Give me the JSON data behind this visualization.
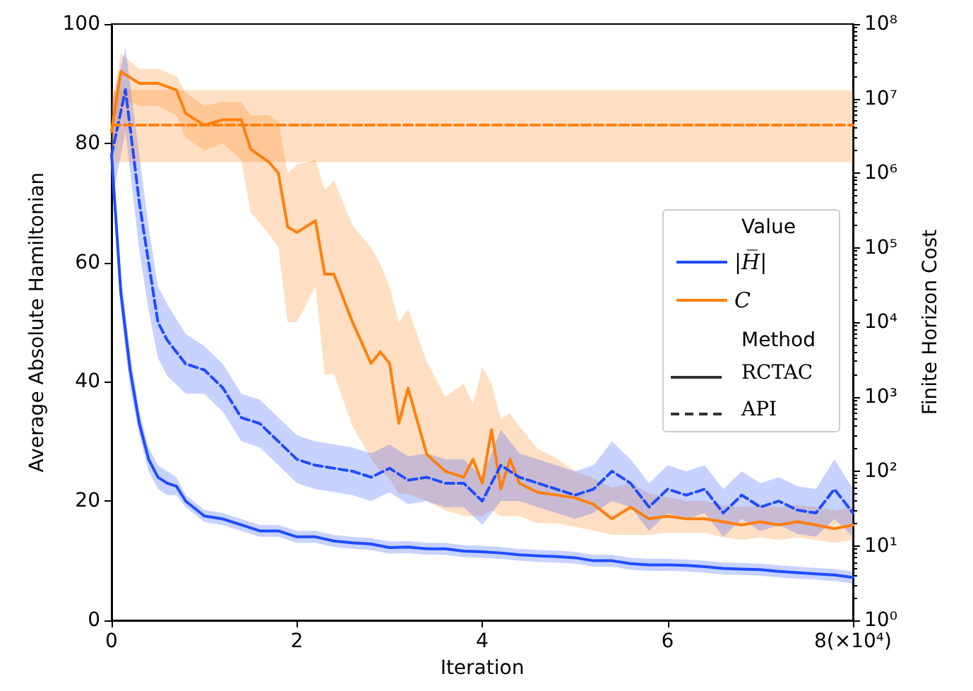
{
  "chart_data": {
    "type": "line",
    "xlabel": "Iteration",
    "ylabel": "Average Absolute Hamiltonian",
    "y2label": "Finite Horizon Cost",
    "legend_title": "Value",
    "legend": "right",
    "marker": "none",
    "grid": false,
    "annotations": [
      "Method",
      "RCTAC",
      "API"
    ],
    "xlim": [
      0,
      8
    ],
    "xticks": [
      0,
      2,
      4,
      6,
      {
        "value": 8,
        "label": "8(×10⁴)"
      }
    ],
    "ylim": [
      0,
      100
    ],
    "yticks": [
      0,
      20,
      40,
      60,
      80,
      100
    ],
    "log": "y2",
    "y2lim": [
      1,
      100000000
    ],
    "y2ticks": [
      {
        "value": 1,
        "label": "10⁰"
      },
      {
        "value": 10,
        "label": "10¹"
      },
      {
        "value": 100,
        "label": "10²"
      },
      {
        "value": 1000,
        "label": "10³"
      },
      {
        "value": 10000,
        "label": "10⁴"
      },
      {
        "value": 100000,
        "label": "10⁵"
      },
      {
        "value": 1000000,
        "label": "10⁶"
      },
      {
        "value": 10000000,
        "label": "10⁷"
      },
      {
        "value": 100000000,
        "label": "10⁸"
      }
    ],
    "series": [
      {
        "name": "|H̅|",
        "color": "#1f4cff",
        "line_style": "solid",
        "x": [
          0,
          0.1,
          0.2,
          0.3,
          0.4,
          0.5,
          0.6,
          0.7,
          0.8,
          1.0,
          1.2,
          1.4,
          1.6,
          1.8,
          2.0,
          2.2,
          2.4,
          2.6,
          2.8,
          3.0,
          3.2,
          3.4,
          3.6,
          3.8,
          4.0,
          4.2,
          4.4,
          4.6,
          4.8,
          5.0,
          5.2,
          5.4,
          5.6,
          5.8,
          6.0,
          6.2,
          6.4,
          6.6,
          6.8,
          7.0,
          7.2,
          7.4,
          7.6,
          7.8,
          8.0
        ],
        "values": [
          78,
          55,
          42,
          33,
          27,
          24,
          23,
          22.5,
          20,
          17.5,
          17,
          16,
          15,
          15,
          14,
          14,
          13.3,
          13,
          12.8,
          12.2,
          12.3,
          12,
          12,
          11.6,
          11.5,
          11.3,
          11,
          10.8,
          10.7,
          10.5,
          10,
          10,
          9.5,
          9.3,
          9.3,
          9.2,
          9,
          8.7,
          8.6,
          8.5,
          8.2,
          8,
          7.8,
          7.6,
          7.2
        ],
        "lower": [
          76,
          52,
          39,
          31,
          25,
          22,
          21,
          21,
          19,
          16.5,
          16,
          15,
          14,
          14,
          13,
          13,
          12.3,
          12,
          11.8,
          11.2,
          11.3,
          11,
          11,
          10.6,
          10.5,
          10.3,
          10,
          9.8,
          9.7,
          9.5,
          9,
          9,
          8.5,
          8.3,
          8.3,
          8.2,
          8,
          7.7,
          7.6,
          7.5,
          7.2,
          7,
          6.8,
          6.6,
          6.2
        ],
        "upper": [
          80,
          58,
          45,
          35,
          29,
          26,
          25,
          24,
          21,
          18.5,
          18,
          17,
          16,
          16,
          15,
          15,
          14.3,
          14,
          13.8,
          13.2,
          13.3,
          13,
          13,
          12.6,
          12.5,
          12.3,
          12,
          11.8,
          11.7,
          11.5,
          11,
          11,
          10.5,
          10.3,
          10.3,
          10.2,
          10,
          9.7,
          9.6,
          9.5,
          9.2,
          9,
          8.8,
          8.6,
          8.2
        ]
      },
      {
        "name": "C",
        "color": "#ff7f0e",
        "line_style": "solid",
        "axis": "y2",
        "x": [
          0,
          0.1,
          0.3,
          0.5,
          0.7,
          0.8,
          1.0,
          1.2,
          1.4,
          1.5,
          1.7,
          1.8,
          1.9,
          2.0,
          2.2,
          2.3,
          2.4,
          2.6,
          2.8,
          2.9,
          3.0,
          3.1,
          3.2,
          3.4,
          3.6,
          3.8,
          3.9,
          4.0,
          4.1,
          4.2,
          4.3,
          4.4,
          4.6,
          4.8,
          5.0,
          5.2,
          5.4,
          5.6,
          5.8,
          6.0,
          6.2,
          6.4,
          6.6,
          6.8,
          7.0,
          7.2,
          7.4,
          7.6,
          7.8,
          8.0
        ],
        "values": [
          3600000,
          23000000,
          16000000,
          16000000,
          13000000,
          6300000,
          4400000,
          5200000,
          5200000,
          2100000,
          1400000,
          1000000,
          190000,
          160000,
          230000,
          44000,
          44000,
          10000,
          2800,
          4000,
          2800,
          440,
          1300,
          170,
          100,
          83,
          145,
          69,
          360,
          58,
          145,
          69,
          52,
          48,
          44,
          36,
          23,
          33,
          23,
          25,
          23,
          23,
          21,
          19,
          21,
          19,
          21,
          19,
          17,
          19
        ],
        "lower": [
          1500000,
          10000000,
          8000000,
          8000000,
          6000000,
          3000000,
          2000000,
          2500000,
          1500000,
          300000,
          150000,
          100000,
          10000,
          10000,
          30000,
          2000,
          2000,
          400,
          150,
          100,
          80,
          50,
          50,
          40,
          30,
          25,
          25,
          25,
          30,
          25,
          25,
          25,
          20,
          20,
          18,
          16,
          14,
          14,
          14,
          15,
          15,
          15,
          13,
          12,
          13,
          12,
          13,
          12,
          11,
          12
        ],
        "upper": [
          8000000,
          40000000,
          25000000,
          25000000,
          20000000,
          12000000,
          8000000,
          9000000,
          9000000,
          6000000,
          6000000,
          5000000,
          1000000,
          1300000,
          1500000,
          600000,
          800000,
          200000,
          100000,
          60000,
          30000,
          10000,
          15000,
          3000,
          1000,
          1500,
          800,
          2500,
          1500,
          500,
          600,
          400,
          200,
          150,
          100,
          80,
          60,
          70,
          50,
          45,
          40,
          40,
          35,
          33,
          35,
          33,
          35,
          33,
          30,
          33
        ]
      },
      {
        "color": "#1f4cff",
        "line_style": "dashed",
        "x": [
          0,
          0.15,
          0.3,
          0.4,
          0.5,
          0.6,
          0.8,
          1.0,
          1.2,
          1.4,
          1.6,
          1.8,
          2.0,
          2.2,
          2.4,
          2.6,
          2.8,
          3.0,
          3.2,
          3.4,
          3.6,
          3.8,
          4.0,
          4.2,
          4.4,
          4.6,
          4.8,
          5.0,
          5.2,
          5.4,
          5.6,
          5.8,
          6.0,
          6.2,
          6.4,
          6.6,
          6.8,
          7.0,
          7.2,
          7.4,
          7.6,
          7.8,
          8.0
        ],
        "values": [
          78,
          89,
          70,
          60,
          50,
          47,
          43,
          42,
          39,
          34,
          33,
          30,
          27,
          26,
          25.5,
          25,
          24,
          25.5,
          23.5,
          24,
          23,
          23,
          20,
          26,
          24,
          23,
          22,
          21,
          22,
          25,
          23,
          19,
          22,
          21,
          22,
          18,
          21,
          19,
          20,
          18.5,
          18,
          22,
          18
        ],
        "lower": [
          70,
          82,
          62,
          52,
          44,
          41,
          38,
          38,
          35,
          30,
          29,
          26,
          23,
          22,
          21.5,
          21,
          20,
          21.5,
          19.5,
          20,
          19,
          19,
          16,
          20,
          20,
          19,
          18,
          17,
          18,
          20,
          19,
          15,
          18,
          17,
          18,
          14,
          17,
          15,
          16,
          14.5,
          14,
          17,
          14
        ],
        "upper": [
          86,
          96,
          78,
          66,
          56,
          53,
          48,
          46,
          43,
          38,
          37,
          34,
          31,
          30,
          29.5,
          29,
          28,
          29.5,
          27.5,
          28,
          27,
          27,
          24,
          32,
          28,
          27,
          26,
          25,
          26,
          30,
          27,
          23,
          26,
          25,
          26,
          22,
          25,
          23,
          24,
          22.5,
          22,
          27,
          22
        ]
      },
      {
        "color": "#ff7f0e",
        "line_style": "dashed",
        "axis": "y2",
        "x": [
          0,
          8
        ],
        "values": [
          4400000,
          4400000
        ],
        "lower": [
          1400000,
          1400000
        ],
        "upper": [
          13000000,
          13000000
        ]
      }
    ]
  }
}
